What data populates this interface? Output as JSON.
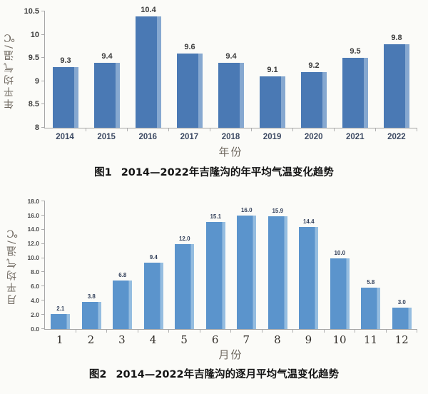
{
  "page": {
    "background": "#fbfbf8"
  },
  "chart_data": [
    {
      "type": "bar",
      "title": "图1 2014—2022年吉隆沟的年平均气温变化趋势",
      "caption": {
        "label": "图1",
        "text": "2014—2022年吉隆沟的年平均气温变化趋势"
      },
      "categories": [
        "2014",
        "2015",
        "2016",
        "2017",
        "2018",
        "2019",
        "2020",
        "2021",
        "2022"
      ],
      "values": [
        9.3,
        9.4,
        10.4,
        9.6,
        9.4,
        9.1,
        9.2,
        9.5,
        9.8
      ],
      "value_labels": [
        "9.3",
        "9.4",
        "10.4",
        "9.6",
        "9.4",
        "9.1",
        "9.2",
        "9.5",
        "9.8"
      ],
      "xlabel": "年份",
      "ylabel": "年平均气温/℃",
      "ylim": [
        8,
        10.5
      ],
      "ytick_values": [
        8,
        8.5,
        9,
        9.5,
        10,
        10.5
      ],
      "yticks": [
        "8",
        "8.5",
        "9",
        "9.5",
        "10",
        "10.5"
      ],
      "bar_color": "#4a79b4",
      "bar_highlight": "#86a8d0",
      "axis_color": "#a6a6a6",
      "grid": false,
      "legend": "none"
    },
    {
      "type": "bar",
      "title": "图2 2014—2022年吉隆沟的逐月平均气温变化趋势",
      "caption": {
        "label": "图2",
        "text": "2014—2022年吉隆沟的逐月平均气温变化趋势"
      },
      "categories": [
        "1",
        "2",
        "3",
        "4",
        "5",
        "6",
        "7",
        "8",
        "9",
        "10",
        "11",
        "12"
      ],
      "values": [
        2.1,
        3.8,
        6.8,
        9.4,
        12.0,
        15.1,
        16.0,
        15.9,
        14.4,
        10.0,
        5.8,
        3.0
      ],
      "value_labels": [
        "2.1",
        "3.8",
        "6.8",
        "9.4",
        "12.0",
        "15.1",
        "16.0",
        "15.9",
        "14.4",
        "10.0",
        "5.8",
        "3.0"
      ],
      "xlabel": "月份",
      "ylabel": "月平均气温/℃",
      "ylim": [
        0,
        18
      ],
      "ytick_values": [
        0,
        2,
        4,
        6,
        8,
        10,
        12,
        14,
        16,
        18
      ],
      "yticks": [
        "0.0",
        "2.0",
        "4.0",
        "6.0",
        "8.0",
        "10.0",
        "12.0",
        "14.0",
        "16.0",
        "18.0"
      ],
      "bar_color": "#5b94cc",
      "bar_highlight": "#95bde0",
      "axis_color": "#a6a6a6",
      "grid": false,
      "legend": "none"
    }
  ]
}
